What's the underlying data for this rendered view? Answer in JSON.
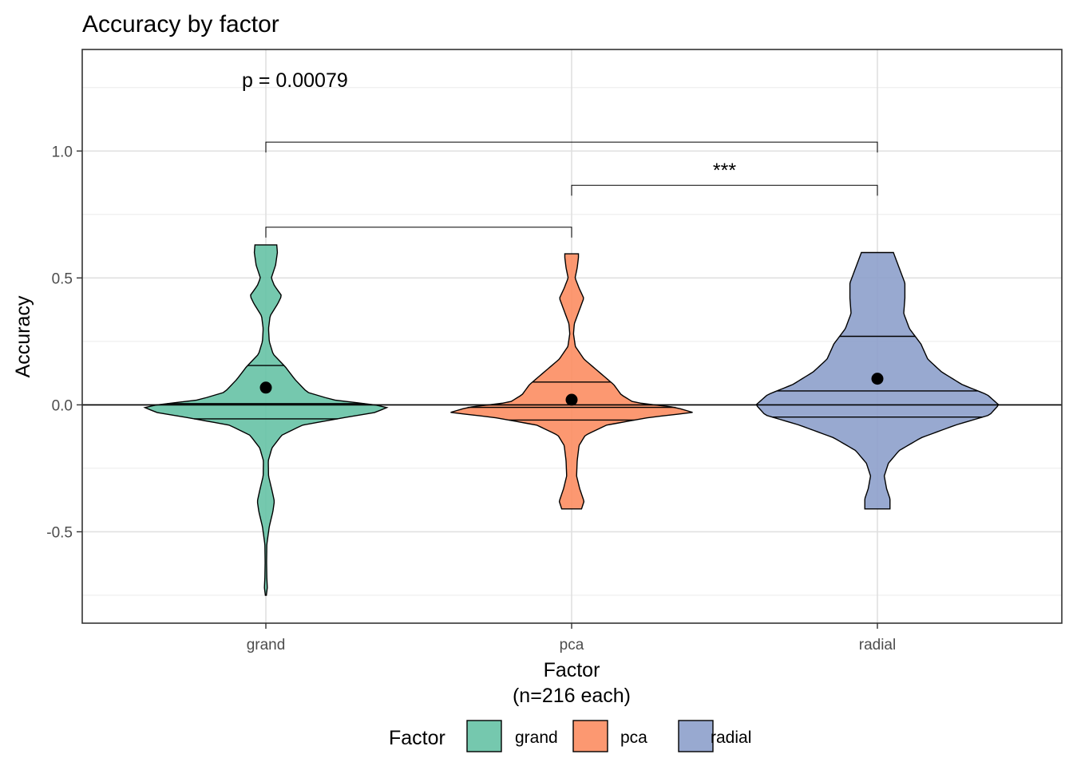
{
  "chart_data": {
    "type": "violin",
    "title": "Accuracy by factor",
    "xlabel": "Factor",
    "xlabel_sub": "(n=216 each)",
    "ylabel": "Accuracy",
    "ylim": [
      -0.86,
      1.4
    ],
    "yticks": [
      -0.5,
      0.0,
      0.5,
      1.0
    ],
    "ytick_labels": [
      "-0.5",
      "0.0",
      "0.5",
      "1.0"
    ],
    "categories": [
      "grand",
      "pca",
      "radial"
    ],
    "colors": [
      "#66c2a5",
      "#fc8d62",
      "#8da0cb"
    ],
    "fill_opacity": 0.9,
    "grid": true,
    "reference_line_y": 0,
    "series": [
      {
        "name": "grand",
        "min": -0.75,
        "max": 0.63,
        "mean": 0.068,
        "quantiles": [
          -0.055,
          0.005,
          0.155
        ],
        "density": [
          [
            -0.75,
            0.004
          ],
          [
            -0.72,
            0.012
          ],
          [
            -0.68,
            0.008
          ],
          [
            -0.62,
            0.006
          ],
          [
            -0.55,
            0.008
          ],
          [
            -0.48,
            0.028
          ],
          [
            -0.42,
            0.058
          ],
          [
            -0.38,
            0.07
          ],
          [
            -0.34,
            0.052
          ],
          [
            -0.28,
            0.022
          ],
          [
            -0.22,
            0.02
          ],
          [
            -0.17,
            0.05
          ],
          [
            -0.12,
            0.13
          ],
          [
            -0.08,
            0.3
          ],
          [
            -0.05,
            0.65
          ],
          [
            -0.03,
            0.9
          ],
          [
            -0.01,
            1.0
          ],
          [
            0.0,
            0.9
          ],
          [
            0.02,
            0.55
          ],
          [
            0.05,
            0.34
          ],
          [
            0.1,
            0.24
          ],
          [
            0.15,
            0.16
          ],
          [
            0.2,
            0.06
          ],
          [
            0.25,
            0.028
          ],
          [
            0.3,
            0.022
          ],
          [
            0.35,
            0.035
          ],
          [
            0.4,
            0.1
          ],
          [
            0.43,
            0.13
          ],
          [
            0.47,
            0.07
          ],
          [
            0.5,
            0.045
          ],
          [
            0.55,
            0.08
          ],
          [
            0.6,
            0.095
          ],
          [
            0.63,
            0.09
          ]
        ]
      },
      {
        "name": "pca",
        "min": -0.41,
        "max": 0.595,
        "mean": 0.02,
        "quantiles": [
          -0.06,
          -0.01,
          0.09
        ],
        "density": [
          [
            -0.41,
            0.08
          ],
          [
            -0.38,
            0.1
          ],
          [
            -0.33,
            0.065
          ],
          [
            -0.28,
            0.04
          ],
          [
            -0.22,
            0.045
          ],
          [
            -0.16,
            0.06
          ],
          [
            -0.12,
            0.11
          ],
          [
            -0.08,
            0.28
          ],
          [
            -0.05,
            0.62
          ],
          [
            -0.03,
            0.98
          ],
          [
            -0.01,
            0.84
          ],
          [
            0.01,
            0.5
          ],
          [
            0.04,
            0.4
          ],
          [
            0.08,
            0.34
          ],
          [
            0.13,
            0.22
          ],
          [
            0.18,
            0.1
          ],
          [
            0.23,
            0.03
          ],
          [
            0.28,
            0.015
          ],
          [
            0.32,
            0.022
          ],
          [
            0.37,
            0.06
          ],
          [
            0.42,
            0.098
          ],
          [
            0.46,
            0.06
          ],
          [
            0.5,
            0.028
          ],
          [
            0.54,
            0.045
          ],
          [
            0.58,
            0.055
          ],
          [
            0.595,
            0.055
          ]
        ]
      },
      {
        "name": "radial",
        "min": -0.41,
        "max": 0.6,
        "mean": 0.103,
        "quantiles": [
          -0.048,
          0.055,
          0.27
        ],
        "density": [
          [
            -0.41,
            0.055
          ],
          [
            -0.37,
            0.055
          ],
          [
            -0.33,
            0.04
          ],
          [
            -0.28,
            0.03
          ],
          [
            -0.23,
            0.048
          ],
          [
            -0.18,
            0.095
          ],
          [
            -0.13,
            0.19
          ],
          [
            -0.08,
            0.34
          ],
          [
            -0.04,
            0.49
          ],
          [
            0.0,
            0.53
          ],
          [
            0.04,
            0.48
          ],
          [
            0.08,
            0.37
          ],
          [
            0.13,
            0.28
          ],
          [
            0.18,
            0.22
          ],
          [
            0.24,
            0.19
          ],
          [
            0.3,
            0.14
          ],
          [
            0.36,
            0.115
          ],
          [
            0.42,
            0.12
          ],
          [
            0.48,
            0.12
          ],
          [
            0.54,
            0.095
          ],
          [
            0.6,
            0.07
          ]
        ]
      }
    ],
    "brackets": [
      {
        "from": "grand",
        "to": "pca",
        "y": 0.7,
        "label": ""
      },
      {
        "from": "pca",
        "to": "radial",
        "y": 0.865,
        "label": "***"
      },
      {
        "from": "grand",
        "to": "radial",
        "y": 1.035,
        "label": ""
      }
    ],
    "annotation": {
      "text": "p = 0.00079",
      "x": "grand",
      "y": 1.28
    },
    "legend": {
      "title": "Factor",
      "position": "bottom",
      "entries": [
        "grand",
        "pca",
        "radial"
      ]
    }
  }
}
